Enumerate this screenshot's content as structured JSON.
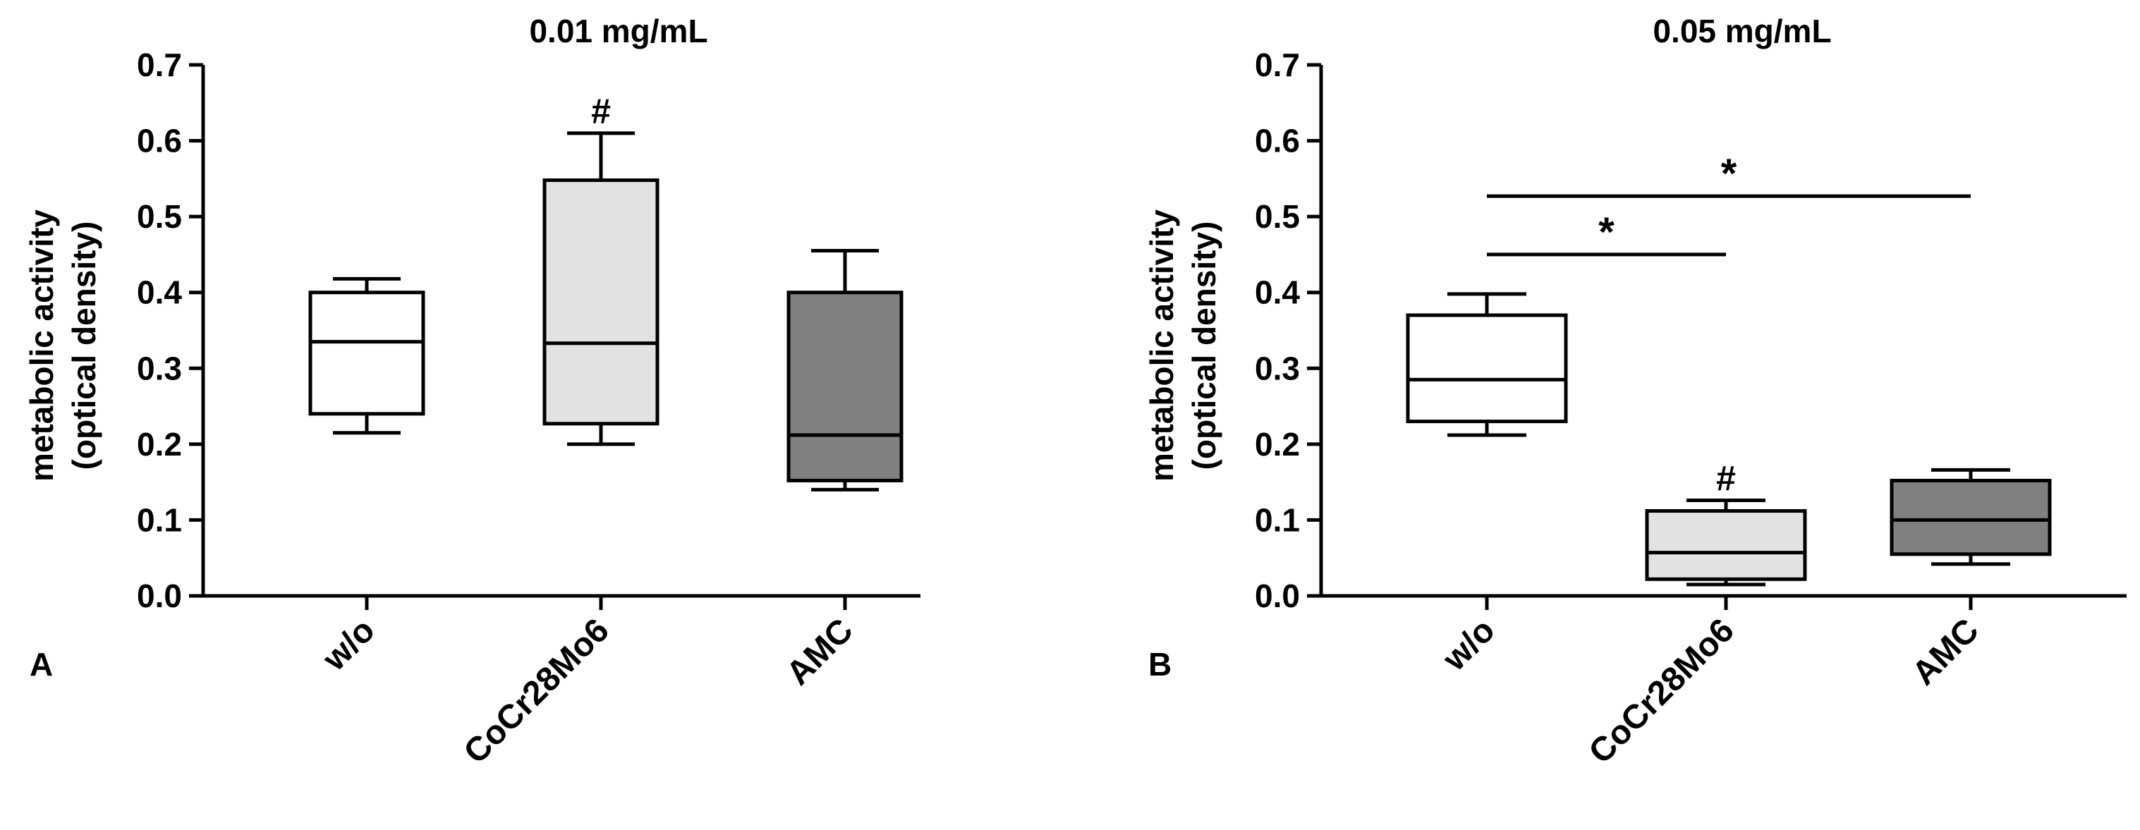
{
  "chart_data": [
    {
      "panel_label": "A",
      "type": "box",
      "title": "0.01 mg/mL",
      "ylabel_line1": "metabolic activity",
      "ylabel_line2": "(optical density)",
      "xlabel": "",
      "ylim": [
        0,
        0.7
      ],
      "yticks": [
        0.0,
        0.1,
        0.2,
        0.3,
        0.4,
        0.5,
        0.6,
        0.7
      ],
      "ytick_labels": [
        "0.0",
        "0.1",
        "0.2",
        "0.3",
        "0.4",
        "0.5",
        "0.6",
        "0.7"
      ],
      "categories": [
        "w/o",
        "CoCr28Mo6",
        "AMC"
      ],
      "boxes": [
        {
          "name": "w/o",
          "min": 0.215,
          "q1": 0.24,
          "median": 0.335,
          "q3": 0.4,
          "max": 0.418,
          "fill": "#ffffff",
          "annotation": ""
        },
        {
          "name": "CoCr28Mo6",
          "min": 0.2,
          "q1": 0.227,
          "median": 0.333,
          "q3": 0.548,
          "max": 0.61,
          "fill": "#e2e2e2",
          "annotation": "#"
        },
        {
          "name": "AMC",
          "min": 0.14,
          "q1": 0.152,
          "median": 0.212,
          "q3": 0.4,
          "max": 0.455,
          "fill": "#808080",
          "annotation": ""
        }
      ],
      "significance": []
    },
    {
      "panel_label": "B",
      "type": "box",
      "title": "0.05 mg/mL",
      "ylabel_line1": "metabolic activity",
      "ylabel_line2": "(optical density)",
      "xlabel": "",
      "ylim": [
        0,
        0.7
      ],
      "yticks": [
        0.0,
        0.1,
        0.2,
        0.3,
        0.4,
        0.5,
        0.6,
        0.7
      ],
      "ytick_labels": [
        "0.0",
        "0.1",
        "0.2",
        "0.3",
        "0.4",
        "0.5",
        "0.6",
        "0.7"
      ],
      "categories": [
        "w/o",
        "CoCr28Mo6",
        "AMC"
      ],
      "boxes": [
        {
          "name": "w/o",
          "min": 0.212,
          "q1": 0.23,
          "median": 0.285,
          "q3": 0.37,
          "max": 0.398,
          "fill": "#ffffff",
          "annotation": ""
        },
        {
          "name": "CoCr28Mo6",
          "min": 0.015,
          "q1": 0.022,
          "median": 0.057,
          "q3": 0.112,
          "max": 0.126,
          "fill": "#e2e2e2",
          "annotation": "#"
        },
        {
          "name": "AMC",
          "min": 0.042,
          "q1": 0.055,
          "median": 0.1,
          "q3": 0.152,
          "max": 0.166,
          "fill": "#808080",
          "annotation": ""
        }
      ],
      "significance": [
        {
          "from": 0,
          "to": 1,
          "y": 0.45,
          "label": "*"
        },
        {
          "from": 0,
          "to": 2,
          "y": 0.527,
          "label": "*"
        }
      ]
    }
  ]
}
